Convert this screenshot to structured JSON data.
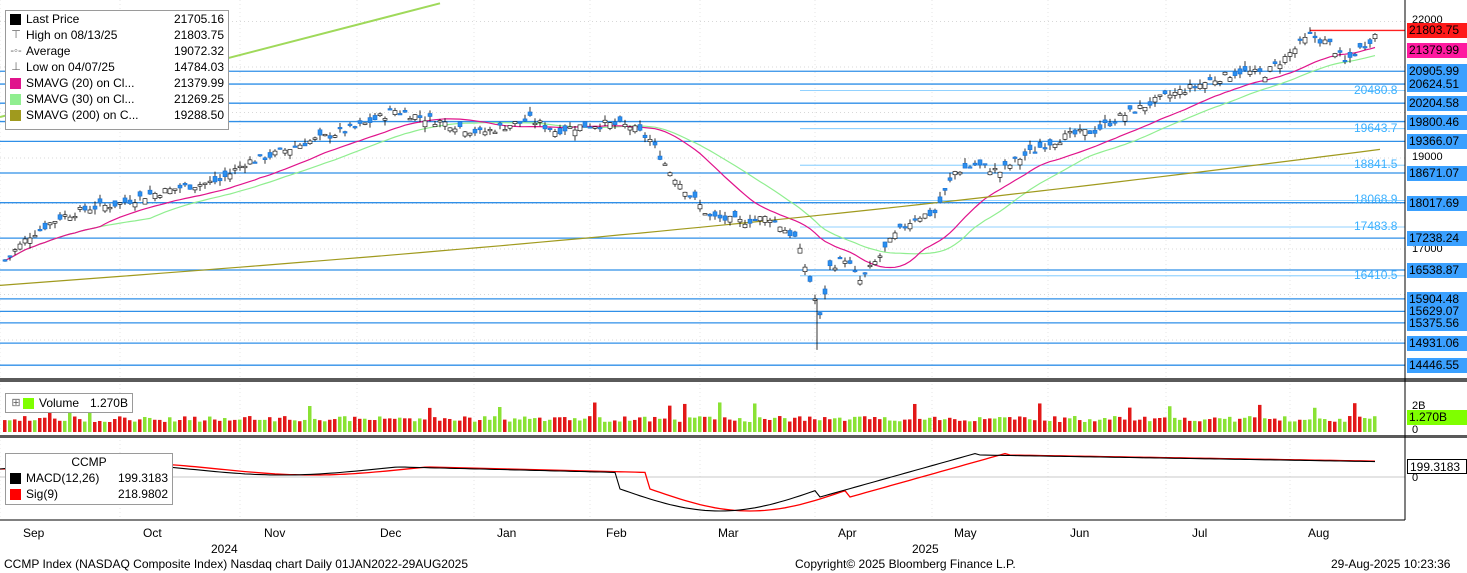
{
  "chart_data": {
    "type": "candlestick",
    "title": "CCMP Index (NASDAQ Composite Index) Nasdaq chart",
    "timeframe": "Daily 01JAN2022-29AUG2025",
    "ticker": "CCMP",
    "price_axis": {
      "ticks": [
        "22000",
        "19000",
        "17000"
      ],
      "range": [
        14100,
        22400
      ]
    },
    "x_axis": {
      "months": [
        "Sep",
        "Oct",
        "Nov",
        "Dec",
        "Jan",
        "Feb",
        "Mar",
        "Apr",
        "May",
        "Jun",
        "Jul",
        "Aug"
      ],
      "years": [
        "2024",
        "2025"
      ]
    },
    "legend": [
      {
        "label": "Last Price",
        "value": "21705.16",
        "color": "#000000"
      },
      {
        "label": "High on 08/13/25",
        "value": "21803.75"
      },
      {
        "label": "Average",
        "value": "19072.32"
      },
      {
        "label": "Low on 04/07/25",
        "value": "14784.03"
      },
      {
        "label": "SMAVG (20)  on Cl...",
        "value": "21379.99",
        "color": "#e0148c"
      },
      {
        "label": "SMAVG (30)  on Cl...",
        "value": "21269.25",
        "color": "#90ee90"
      },
      {
        "label": "SMAVG (200)  on C...",
        "value": "19288.50",
        "color": "#a09a1e"
      }
    ],
    "price_tags": [
      {
        "value": "21803.75",
        "bg": "#ff1a1a"
      },
      {
        "value": "21379.99",
        "bg": "#ff1aa0"
      },
      {
        "value": "20905.99",
        "bg": "#3aa0ff"
      },
      {
        "value": "20624.51",
        "bg": "#3aa0ff"
      },
      {
        "value": "20204.58",
        "bg": "#3aa0ff"
      },
      {
        "value": "19800.46",
        "bg": "#3aa0ff"
      },
      {
        "value": "19366.07",
        "bg": "#3aa0ff"
      },
      {
        "value": "18671.07",
        "bg": "#3aa0ff"
      },
      {
        "value": "18017.69",
        "bg": "#3aa0ff"
      },
      {
        "value": "17238.24",
        "bg": "#3aa0ff"
      },
      {
        "value": "16538.87",
        "bg": "#3aa0ff"
      },
      {
        "value": "15904.48",
        "bg": "#3aa0ff"
      },
      {
        "value": "15629.07",
        "bg": "#3aa0ff"
      },
      {
        "value": "15375.56",
        "bg": "#3aa0ff"
      },
      {
        "value": "14931.06",
        "bg": "#3aa0ff"
      },
      {
        "value": "14446.55",
        "bg": "#3aa0ff"
      }
    ],
    "level_labels": [
      "20480.8",
      "19643.7",
      "18841.5",
      "18068.9",
      "17483.8",
      "16410.5"
    ],
    "volume": {
      "label": "Volume",
      "value": "1.270B",
      "ticks": [
        "2B",
        "0"
      ],
      "tag": "1.270B"
    },
    "macd": {
      "title": "CCMP",
      "rows": [
        {
          "label": "MACD(12,26)",
          "value": "199.3183",
          "color": "#000000"
        },
        {
          "label": "Sig(9)",
          "value": "218.9802",
          "color": "#ff0000"
        }
      ],
      "tag": "199.3183",
      "zero_tick": "0"
    }
  },
  "footer": {
    "left": "CCMP Index (NASDAQ Composite Index) Nasdaq chart  Daily 01JAN2022-29AUG2025",
    "center": "Copyright© 2025 Bloomberg Finance L.P.",
    "right": "29-Aug-2025 10:23:36"
  }
}
